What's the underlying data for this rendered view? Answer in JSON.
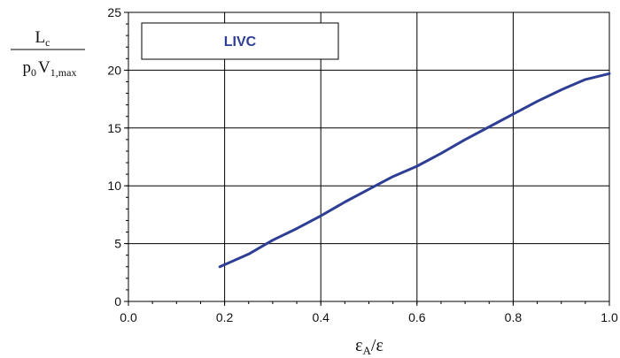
{
  "chart_data": {
    "type": "line",
    "title": "",
    "xlabel": {
      "main": "ε",
      "sub": "A",
      "rest": "/ε"
    },
    "ylabel": {
      "numerator_main": "L",
      "numerator_sub": "c",
      "denominator_main1": "p",
      "denominator_sub1": "0",
      "denominator_main2": "V",
      "denominator_sub2": "1,max"
    },
    "xlim": [
      0.0,
      1.0
    ],
    "ylim": [
      0,
      25
    ],
    "x_ticks": [
      "0.0",
      "0.2",
      "0.4",
      "0.6",
      "0.8",
      "1.0"
    ],
    "y_ticks": [
      "0",
      "5",
      "10",
      "15",
      "20",
      "25"
    ],
    "grid": true,
    "legend": {
      "label": "LIVC",
      "placement": "top-left"
    },
    "series": [
      {
        "name": "LIVC",
        "color": "#2e3e95",
        "points": [
          [
            0.19,
            3.0
          ],
          [
            0.25,
            4.1
          ],
          [
            0.3,
            5.3
          ],
          [
            0.35,
            6.3
          ],
          [
            0.4,
            7.4
          ],
          [
            0.45,
            8.6
          ],
          [
            0.5,
            9.7
          ],
          [
            0.55,
            10.8
          ],
          [
            0.6,
            11.7
          ],
          [
            0.65,
            12.8
          ],
          [
            0.7,
            14.0
          ],
          [
            0.75,
            15.1
          ],
          [
            0.8,
            16.2
          ],
          [
            0.85,
            17.3
          ],
          [
            0.9,
            18.3
          ],
          [
            0.95,
            19.2
          ],
          [
            1.0,
            19.7
          ]
        ]
      }
    ]
  }
}
